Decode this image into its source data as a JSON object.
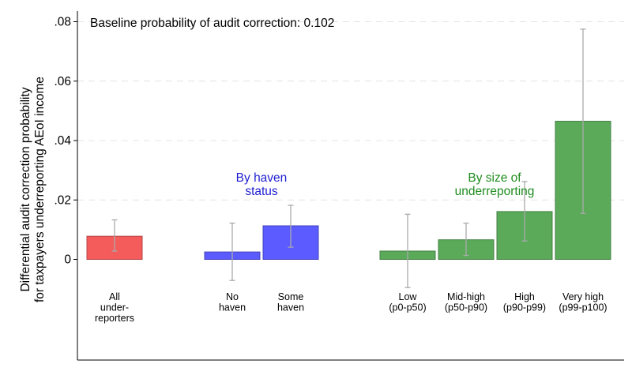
{
  "chart_data": {
    "type": "bar",
    "annotation": "Baseline probability of audit correction: 0.102",
    "ylabel_lines": [
      "Differential audit correction probability",
      "for taxpayers underreporting AEoI income"
    ],
    "ylim": [
      -0.034,
      0.084
    ],
    "yticks": [
      {
        "value": 0,
        "label": "0"
      },
      {
        "value": 0.02,
        "label": ".02"
      },
      {
        "value": 0.04,
        "label": ".04"
      },
      {
        "value": 0.06,
        "label": ".06"
      },
      {
        "value": 0.08,
        "label": ".08"
      }
    ],
    "grid": true,
    "groups": [
      {
        "title_lines": [],
        "color": "#f45b5b"
      },
      {
        "title_lines": [
          "By haven",
          "status"
        ],
        "color": "#5b5bff",
        "title_color": "#1f1fd0"
      },
      {
        "title_lines": [
          "By size of",
          "underreporting"
        ],
        "color": "#5aaa5a",
        "title_color": "#1e8c1e"
      }
    ],
    "bars": [
      {
        "group": 0,
        "label_lines": [
          "All",
          "under-",
          "reporters"
        ],
        "value": 0.0078,
        "ci": [
          0.0028,
          0.0133
        ]
      },
      {
        "group": 1,
        "label_lines": [
          "No",
          "haven"
        ],
        "value": 0.0025,
        "ci": [
          -0.0071,
          0.0122
        ]
      },
      {
        "group": 1,
        "label_lines": [
          "Some",
          "haven"
        ],
        "value": 0.0113,
        "ci": [
          0.0041,
          0.0182
        ]
      },
      {
        "group": 2,
        "label_lines": [
          "Low",
          "(p0-p50)"
        ],
        "value": 0.0028,
        "ci": [
          -0.0095,
          0.0152
        ]
      },
      {
        "group": 2,
        "label_lines": [
          "Mid-high",
          "(p50-p90)"
        ],
        "value": 0.0066,
        "ci": [
          0.0013,
          0.0122
        ]
      },
      {
        "group": 2,
        "label_lines": [
          "High",
          "(p90-p99)"
        ],
        "value": 0.0161,
        "ci": [
          0.0062,
          0.0262
        ]
      },
      {
        "group": 2,
        "label_lines": [
          "Very high",
          "(p99-p100)"
        ],
        "value": 0.0465,
        "ci": [
          0.0155,
          0.0775
        ]
      }
    ]
  }
}
